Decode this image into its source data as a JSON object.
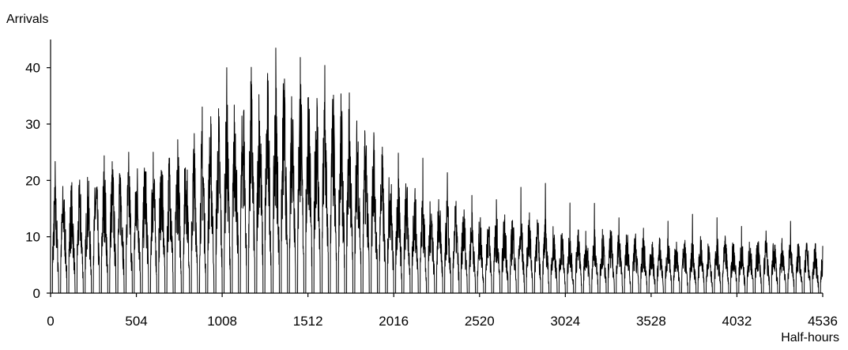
{
  "chart_data": {
    "type": "line",
    "title": "",
    "xlabel": "Half-hours",
    "ylabel": "Arrivals",
    "xlim": [
      0,
      4536
    ],
    "ylim": [
      0,
      45
    ],
    "xticks": [
      0,
      504,
      1008,
      1512,
      2016,
      2520,
      3024,
      3528,
      4032,
      4536
    ],
    "yticks": [
      0,
      10,
      20,
      30,
      40
    ],
    "grid": false,
    "legend": "none",
    "line_color": "#000000",
    "series": [
      {
        "name": "",
        "x": [
          0,
          168,
          336,
          504,
          672,
          840,
          1008,
          1176,
          1344,
          1512,
          1680,
          1848,
          2016,
          2184,
          2352,
          2520,
          2688,
          2856,
          3024,
          3192,
          3360,
          3528,
          3696,
          3864,
          4032,
          4200,
          4368,
          4536
        ],
        "daily_peak": [
          24,
          20,
          25,
          25,
          25,
          30,
          40,
          40,
          44,
          41,
          40,
          30,
          25,
          24,
          21,
          16,
          17,
          21,
          16,
          16,
          13,
          11,
          14,
          14,
          12,
          11,
          13,
          6
        ],
        "typical_peak": [
          14,
          14,
          17,
          17,
          18,
          20,
          24,
          27,
          28,
          28,
          25,
          22,
          16,
          13,
          12,
          10,
          10,
          10,
          8,
          8,
          8,
          7,
          7,
          7,
          7,
          7,
          7,
          6
        ],
        "peak_hour": 27,
        "period": 48
      }
    ]
  }
}
